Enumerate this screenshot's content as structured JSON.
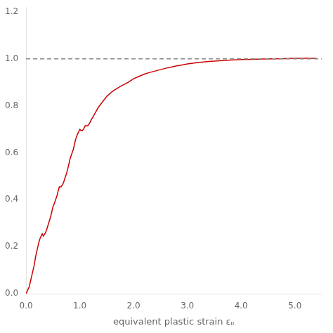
{
  "chart_data": {
    "type": "line",
    "xlabel": "equivalent plastic strain εₚ",
    "xlim": [
      0.0,
      5.5
    ],
    "ylim": [
      0.0,
      1.22
    ],
    "xticks": [
      {
        "value": 0.0,
        "label": "0.0"
      },
      {
        "value": 1.0,
        "label": "1.0"
      },
      {
        "value": 2.0,
        "label": "2.0"
      },
      {
        "value": 3.0,
        "label": "3.0"
      },
      {
        "value": 4.0,
        "label": "4.0"
      },
      {
        "value": 5.0,
        "label": "5.0"
      }
    ],
    "yticks": [
      {
        "value": 0.0,
        "label": "0.0"
      },
      0.2,
      0.4,
      0.6,
      0.8,
      {
        "value": 1.0,
        "label": "1.0"
      },
      1.2
    ],
    "grid": false,
    "series": [
      {
        "color": "#cc0000",
        "line_style": "solid",
        "x": [
          0.0,
          0.02,
          0.04,
          0.06,
          0.08,
          0.1,
          0.12,
          0.15,
          0.18,
          0.2,
          0.22,
          0.24,
          0.26,
          0.28,
          0.3,
          0.32,
          0.35,
          0.38,
          0.4,
          0.42,
          0.44,
          0.46,
          0.48,
          0.5,
          0.52,
          0.55,
          0.58,
          0.6,
          0.62,
          0.65,
          0.68,
          0.7,
          0.72,
          0.75,
          0.78,
          0.8,
          0.82,
          0.85,
          0.88,
          0.9,
          0.92,
          0.95,
          0.98,
          1.0,
          1.02,
          1.05,
          1.08,
          1.1,
          1.12,
          1.15,
          1.18,
          1.2,
          1.25,
          1.3,
          1.35,
          1.4,
          1.45,
          1.5,
          1.55,
          1.6,
          1.65,
          1.7,
          1.75,
          1.8,
          1.9,
          2.0,
          2.1,
          2.2,
          2.3,
          2.4,
          2.5,
          2.6,
          2.7,
          2.8,
          2.9,
          3.0,
          3.2,
          3.4,
          3.6,
          3.8,
          4.0,
          4.2,
          4.4,
          4.6,
          4.8,
          5.0,
          5.2,
          5.4
        ],
        "values": [
          0.0,
          0.01,
          0.02,
          0.03,
          0.05,
          0.07,
          0.09,
          0.12,
          0.16,
          0.18,
          0.2,
          0.22,
          0.235,
          0.245,
          0.255,
          0.245,
          0.255,
          0.27,
          0.285,
          0.3,
          0.315,
          0.33,
          0.35,
          0.37,
          0.38,
          0.4,
          0.42,
          0.44,
          0.455,
          0.455,
          0.465,
          0.475,
          0.49,
          0.51,
          0.535,
          0.555,
          0.575,
          0.595,
          0.615,
          0.635,
          0.655,
          0.675,
          0.69,
          0.7,
          0.695,
          0.695,
          0.705,
          0.715,
          0.715,
          0.715,
          0.725,
          0.735,
          0.755,
          0.775,
          0.795,
          0.81,
          0.825,
          0.84,
          0.85,
          0.86,
          0.868,
          0.875,
          0.882,
          0.888,
          0.9,
          0.915,
          0.925,
          0.935,
          0.942,
          0.948,
          0.954,
          0.96,
          0.965,
          0.97,
          0.974,
          0.978,
          0.984,
          0.989,
          0.992,
          0.995,
          0.997,
          0.998,
          0.999,
          1.0,
          1.001,
          1.002,
          1.002,
          1.002
        ]
      },
      {
        "color": "#888888",
        "line_style": "dashed",
        "x": [
          0.0,
          5.5
        ],
        "values": [
          1.0,
          1.0
        ]
      }
    ]
  }
}
